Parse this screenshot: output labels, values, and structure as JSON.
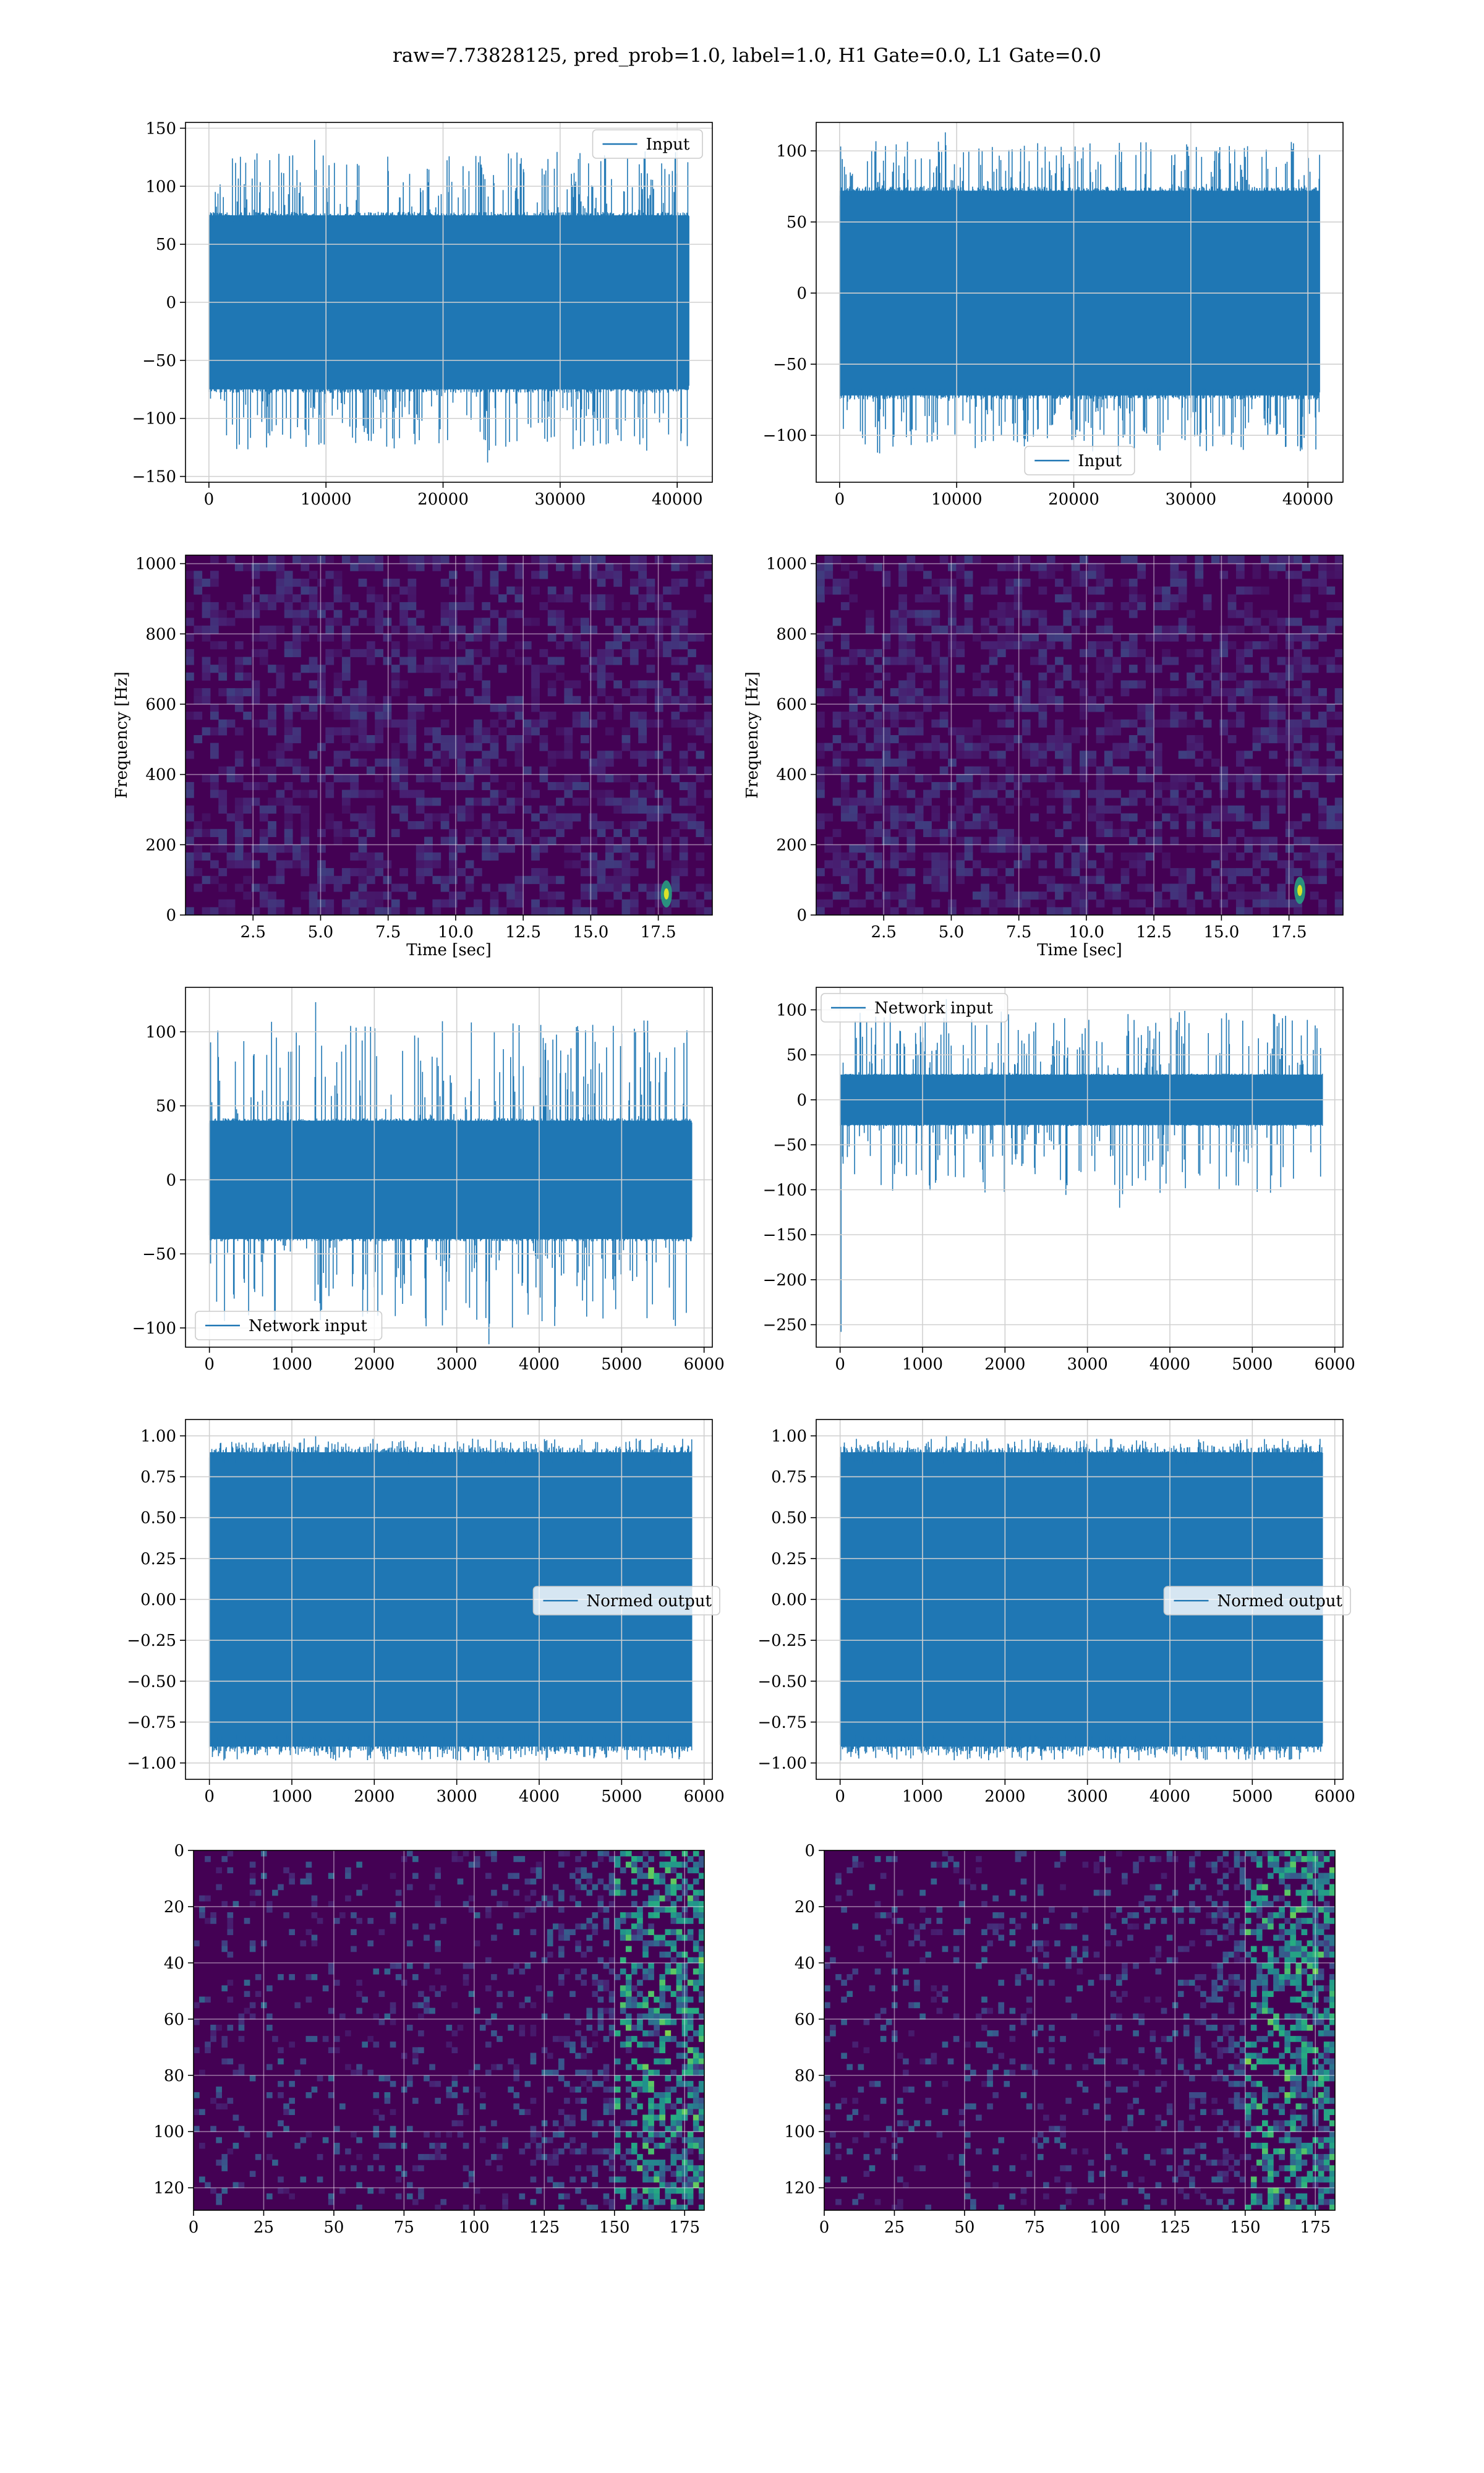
{
  "figure": {
    "suptitle": "raw=7.73828125, pred_prob=1.0, label=1.0, H1 Gate=0.0, L1 Gate=0.0"
  },
  "colors": {
    "line": "#1f77b4",
    "grid": "#d0d0d0",
    "viridis_low": "#440154",
    "viridis_mid": "#21918c",
    "viridis_high": "#fde725"
  },
  "chart_data": [
    {
      "id": "input_h1",
      "type": "line",
      "style": "noise",
      "xlim": [
        -2000,
        43000
      ],
      "ylim": [
        -155,
        155
      ],
      "xticks": [
        0,
        10000,
        20000,
        30000,
        40000
      ],
      "yticks": [
        -150,
        -100,
        -50,
        0,
        50,
        100,
        150
      ],
      "legend": {
        "label": "Input",
        "loc": "upper right"
      },
      "band": {
        "x0": 0,
        "x1": 41000,
        "core": 75,
        "max_peak": 140,
        "min_peak": -138,
        "n": 900
      },
      "grid": true
    },
    {
      "id": "input_l1",
      "type": "line",
      "style": "noise",
      "xlim": [
        -2000,
        43000
      ],
      "ylim": [
        -133,
        120
      ],
      "xticks": [
        0,
        10000,
        20000,
        30000,
        40000
      ],
      "yticks": [
        -100,
        -50,
        0,
        50,
        100
      ],
      "legend": {
        "label": "Input",
        "loc": "lower center"
      },
      "band": {
        "x0": 0,
        "x1": 41000,
        "core": 72,
        "max_peak": 113,
        "min_peak": -120,
        "n": 900
      },
      "grid": true
    },
    {
      "id": "spec_h1",
      "type": "heatmap",
      "style": "spectrogram",
      "xlim": [
        0,
        19.5
      ],
      "ylim": [
        0,
        1024
      ],
      "xticks": [
        2.5,
        5.0,
        7.5,
        10.0,
        12.5,
        15.0,
        17.5
      ],
      "yticks": [
        0,
        200,
        400,
        600,
        800,
        1000
      ],
      "xlabel": "Time [sec]",
      "ylabel": "Frequency [Hz]",
      "hotspot": {
        "t": 17.8,
        "f": 60
      },
      "grid": true
    },
    {
      "id": "spec_l1",
      "type": "heatmap",
      "style": "spectrogram",
      "xlim": [
        0,
        19.5
      ],
      "ylim": [
        0,
        1024
      ],
      "xticks": [
        2.5,
        5.0,
        7.5,
        10.0,
        12.5,
        15.0,
        17.5
      ],
      "yticks": [
        0,
        200,
        400,
        600,
        800,
        1000
      ],
      "xlabel": "Time [sec]",
      "ylabel": "Frequency [Hz]",
      "hotspot": {
        "t": 17.9,
        "f": 70
      },
      "grid": true
    },
    {
      "id": "net_h1",
      "type": "line",
      "style": "noise",
      "xlim": [
        -290,
        6100
      ],
      "ylim": [
        -113,
        130
      ],
      "xticks": [
        0,
        1000,
        2000,
        3000,
        4000,
        5000,
        6000
      ],
      "yticks": [
        -100,
        -50,
        0,
        50,
        100
      ],
      "legend": {
        "label": "Network input",
        "loc": "lower left"
      },
      "band": {
        "x0": 0,
        "x1": 5850,
        "core": 40,
        "max_peak": 120,
        "min_peak": -111,
        "n": 800
      },
      "grid": true
    },
    {
      "id": "net_l1",
      "type": "line",
      "style": "noise",
      "xlim": [
        -290,
        6100
      ],
      "ylim": [
        -275,
        125
      ],
      "xticks": [
        0,
        1000,
        2000,
        3000,
        4000,
        5000,
        6000
      ],
      "yticks": [
        -250,
        -200,
        -150,
        -100,
        -50,
        0,
        50,
        100
      ],
      "legend": {
        "label": "Network input",
        "loc": "upper left"
      },
      "band": {
        "x0": 0,
        "x1": 5850,
        "core": 28,
        "max_peak": 112,
        "min_peak": -120,
        "n": 800,
        "spike": {
          "x": 10,
          "y": -258
        }
      },
      "grid": true
    },
    {
      "id": "out_h1",
      "type": "line",
      "style": "noise",
      "xlim": [
        -290,
        6100
      ],
      "ylim": [
        -1.1,
        1.1
      ],
      "xticks": [
        0,
        1000,
        2000,
        3000,
        4000,
        5000,
        6000
      ],
      "yticks": [
        -1.0,
        -0.75,
        -0.5,
        -0.25,
        0.0,
        0.25,
        0.5,
        0.75,
        1.0
      ],
      "legend": {
        "label": "Normed output",
        "loc": "center right"
      },
      "band": {
        "x0": 0,
        "x1": 5850,
        "core": 0.9,
        "max_peak": 1.0,
        "min_peak": -1.0,
        "n": 800
      },
      "grid": true
    },
    {
      "id": "out_l1",
      "type": "line",
      "style": "noise",
      "xlim": [
        -290,
        6100
      ],
      "ylim": [
        -1.1,
        1.1
      ],
      "xticks": [
        0,
        1000,
        2000,
        3000,
        4000,
        5000,
        6000
      ],
      "yticks": [
        -1.0,
        -0.75,
        -0.5,
        -0.25,
        0.0,
        0.25,
        0.5,
        0.75,
        1.0
      ],
      "legend": {
        "label": "Normed output",
        "loc": "center right"
      },
      "band": {
        "x0": 0,
        "x1": 5850,
        "core": 0.9,
        "max_peak": 1.0,
        "min_peak": -1.0,
        "n": 800
      },
      "grid": true
    },
    {
      "id": "feat_h1",
      "type": "heatmap",
      "style": "features",
      "xlim": [
        0,
        182
      ],
      "ylim": [
        128,
        0
      ],
      "xticks": [
        0,
        25,
        50,
        75,
        100,
        125,
        150,
        175
      ],
      "yticks": [
        0,
        20,
        40,
        60,
        80,
        100,
        120
      ],
      "grid": true
    },
    {
      "id": "feat_l1",
      "type": "heatmap",
      "style": "features",
      "xlim": [
        0,
        182
      ],
      "ylim": [
        128,
        0
      ],
      "xticks": [
        0,
        25,
        50,
        75,
        100,
        125,
        150,
        175
      ],
      "yticks": [
        0,
        20,
        40,
        60,
        80,
        100,
        120
      ],
      "grid": true
    }
  ]
}
